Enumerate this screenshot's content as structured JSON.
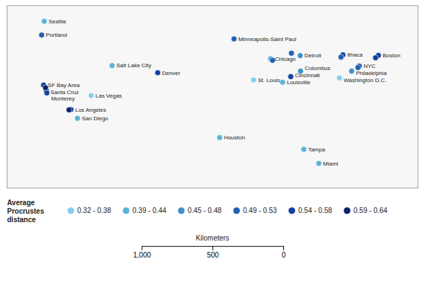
{
  "chart_data": {
    "type": "scatter",
    "xlim": [
      -128,
      -65
    ],
    "ylim": [
      22,
      50
    ],
    "tick_labels": false,
    "grid": false,
    "x": [
      -122.3,
      -122.7,
      -122.4,
      -122.0,
      -121.9,
      -118.2,
      -117.2,
      -115.1,
      -111.9,
      -104.9,
      -93.2,
      -87.6,
      -83.05,
      -90.2,
      -85.75,
      -84.5,
      -83.0,
      -95.4,
      -82.5,
      -80.2,
      -71.06,
      -76.5,
      -74.0,
      -75.16,
      -77.03,
      -87.3,
      -84.4,
      -76.8,
      -74.2,
      -71.5,
      -118.5,
      -122.1
    ],
    "values": [
      47.6,
      45.5,
      37.8,
      36.97,
      36.6,
      34.05,
      32.7,
      36.2,
      40.8,
      39.7,
      44.9,
      41.85,
      42.33,
      38.6,
      38.25,
      39.1,
      39.96,
      29.75,
      27.95,
      25.77,
      42.36,
      42.44,
      40.71,
      39.95,
      38.9,
      41.6,
      42.7,
      42.1,
      40.5,
      42.0,
      34.0,
      37.4
    ],
    "labels": [
      "Seattle",
      "Portland",
      "SF Bay Area",
      "Santa Cruz",
      "Monterey",
      "Los Angeles",
      "San Diego",
      "Las Vegas",
      "Salt Lake City",
      "Denver",
      "Minneapolis-Saint Paul",
      "Chicago",
      "Detroit",
      "St. Louis",
      "Louisville",
      "Cincinnati",
      "Columbus",
      "Houston",
      "Tampa",
      "Miami",
      "Boston",
      "Ithaca",
      "NYC",
      "Philadelphia",
      "Washington D.C.",
      null,
      null,
      null,
      null,
      null,
      null,
      null
    ],
    "point_values": [
      0.41,
      0.52,
      0.56,
      0.61,
      0.54,
      0.57,
      0.42,
      0.33,
      0.41,
      0.58,
      0.52,
      0.44,
      0.48,
      0.34,
      0.42,
      0.54,
      0.47,
      0.43,
      0.41,
      0.42,
      0.55,
      0.57,
      0.56,
      0.47,
      0.35,
      0.52,
      0.5,
      0.52,
      0.52,
      0.55,
      0.62,
      0.59
    ],
    "color_boundaries": [
      0.32,
      0.39,
      0.45,
      0.49,
      0.54,
      0.59,
      0.65
    ],
    "legend_title": "Average\nProcrustes\ndistance",
    "legend_ranges": [
      {
        "label": "0.32 - 0.38",
        "color": "#87CEEB"
      },
      {
        "label": "0.39 - 0.44",
        "color": "#5ab4d8"
      },
      {
        "label": "0.45 - 0.48",
        "color": "#4090c8"
      },
      {
        "label": "0.49 - 0.53",
        "color": "#2060b0"
      },
      {
        "label": "0.54 - 0.58",
        "color": "#1040a0"
      },
      {
        "label": "0.59 - 0.64",
        "color": "#0a2070"
      }
    ],
    "scale_bar": {
      "title": "Kilometers",
      "lim": [
        1000,
        0
      ],
      "ticks": [
        {
          "value": 1000,
          "label": "1,000"
        },
        500,
        0
      ]
    }
  }
}
